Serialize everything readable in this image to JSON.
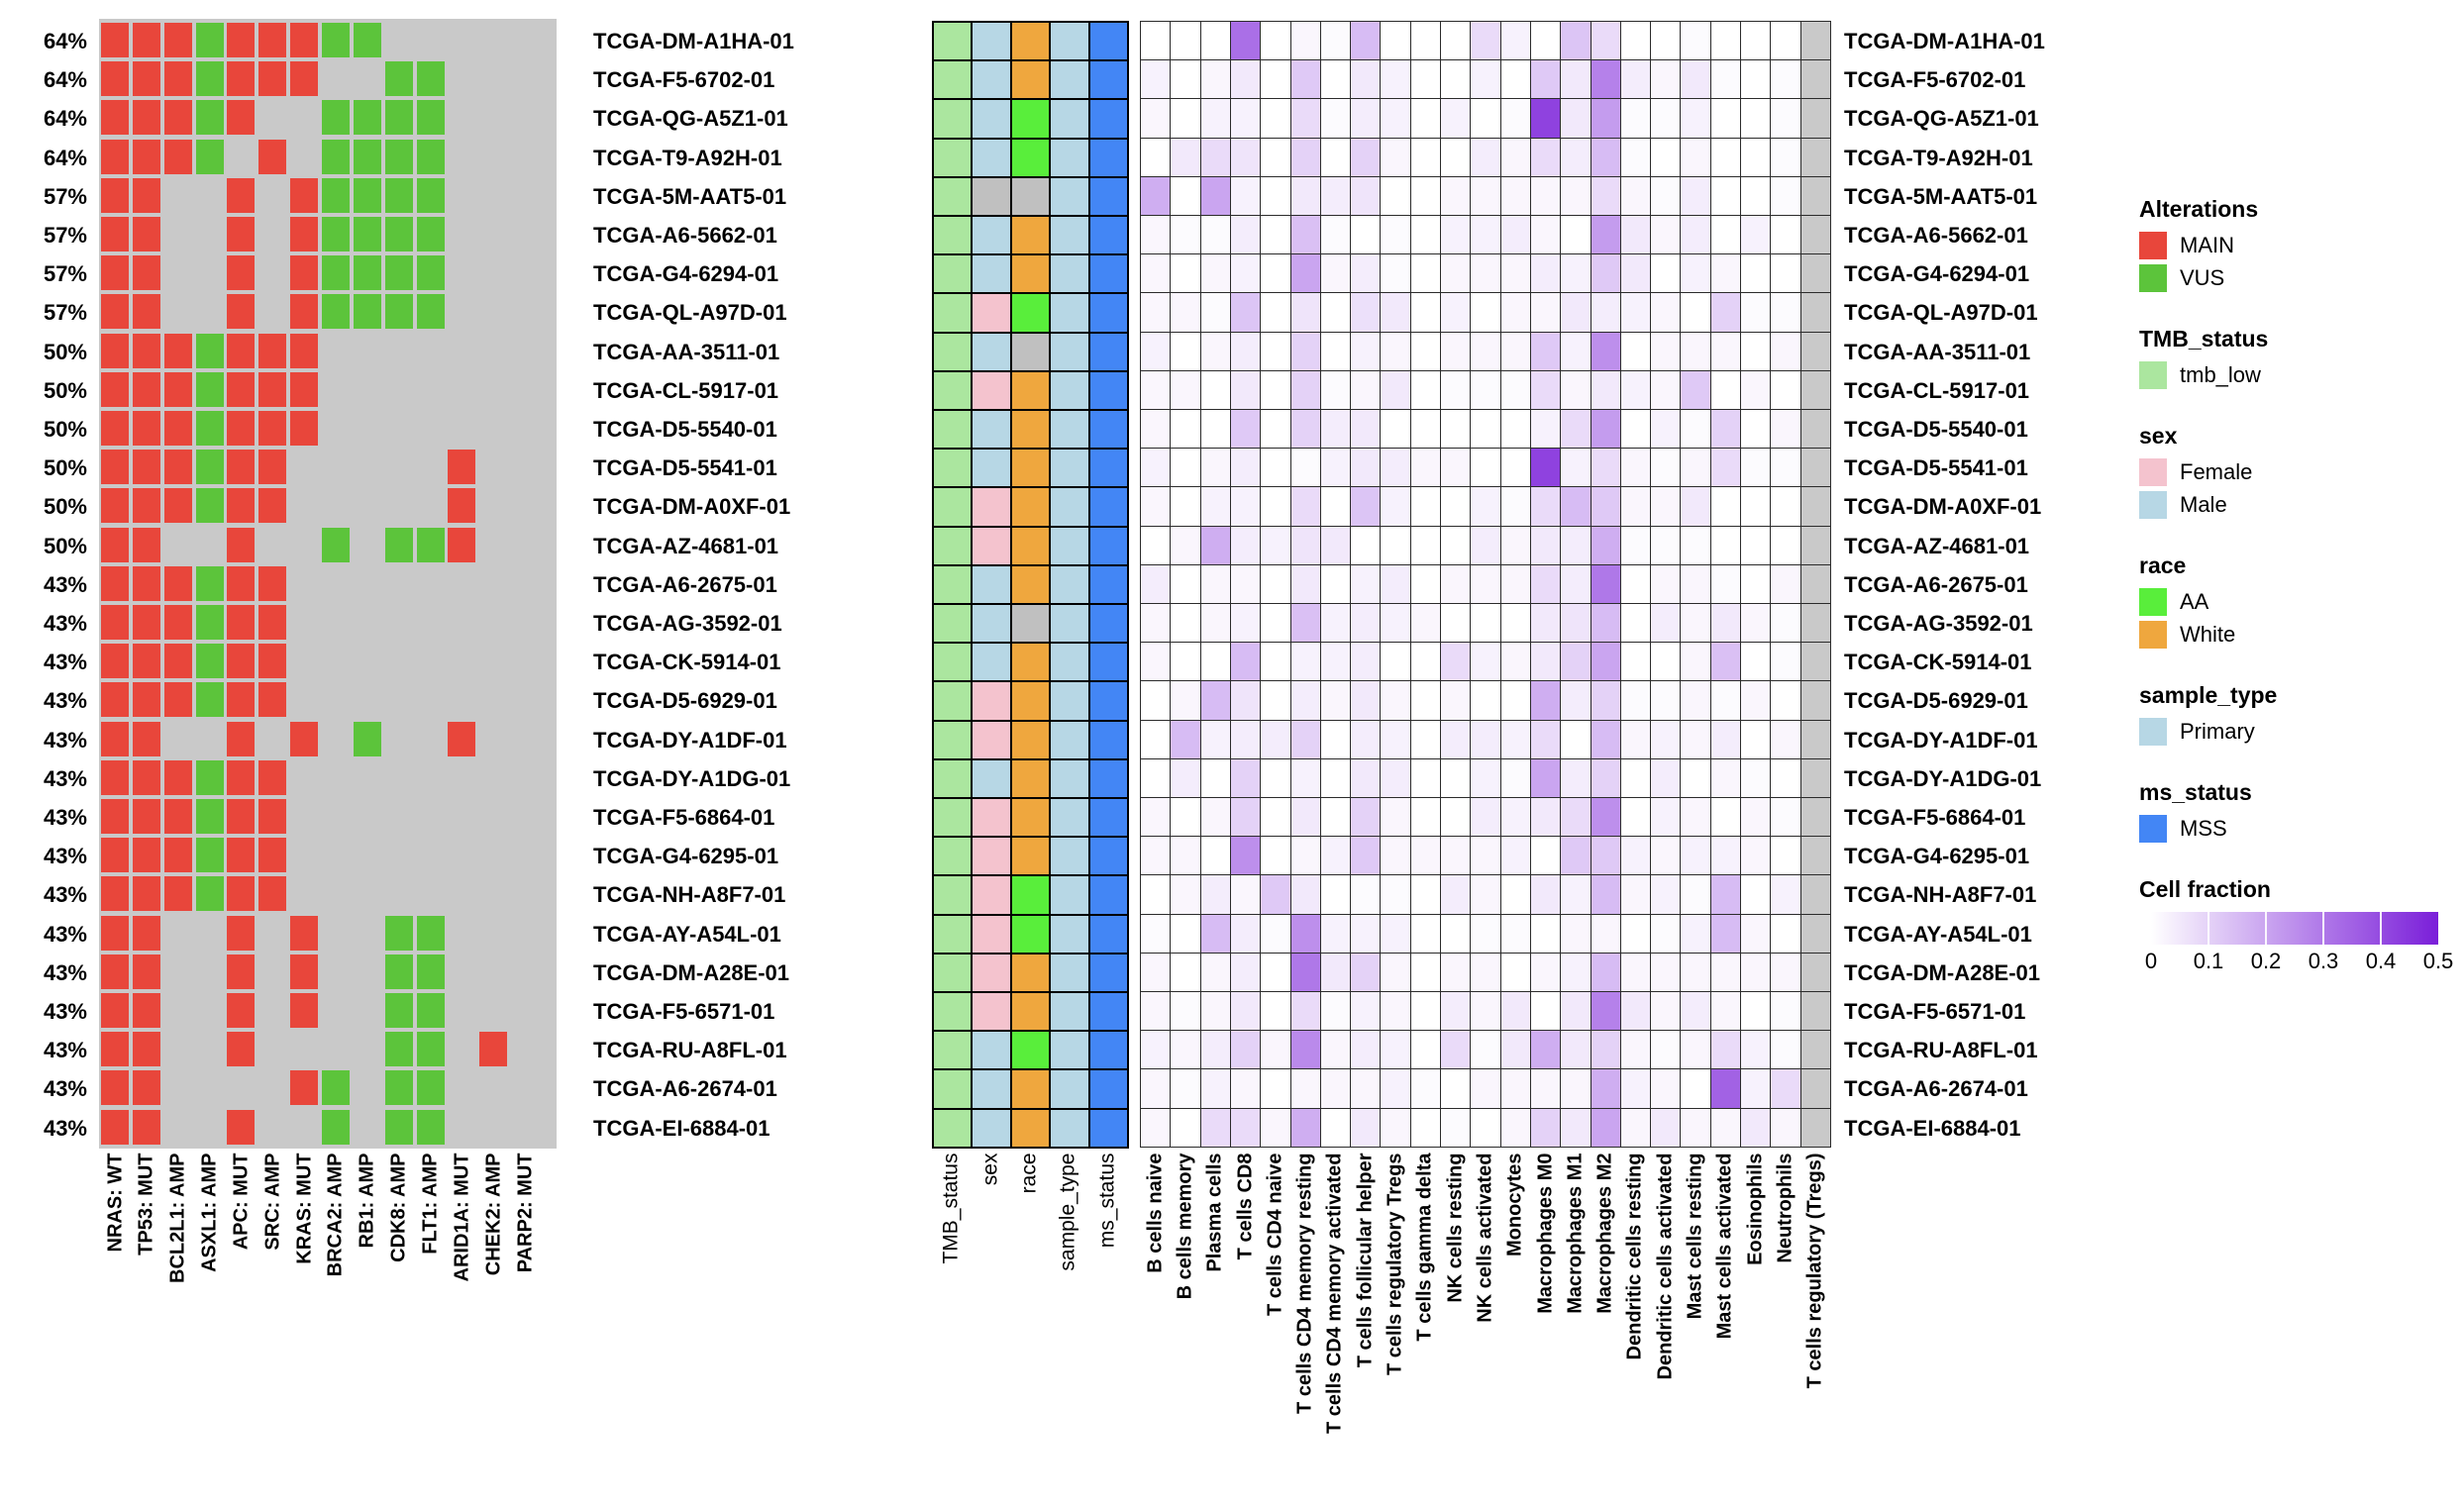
{
  "samples": [
    "TCGA-DM-A1HA-01",
    "TCGA-F5-6702-01",
    "TCGA-QG-A5Z1-01",
    "TCGA-T9-A92H-01",
    "TCGA-5M-AAT5-01",
    "TCGA-A6-5662-01",
    "TCGA-G4-6294-01",
    "TCGA-QL-A97D-01",
    "TCGA-AA-3511-01",
    "TCGA-CL-5917-01",
    "TCGA-D5-5540-01",
    "TCGA-D5-5541-01",
    "TCGA-DM-A0XF-01",
    "TCGA-AZ-4681-01",
    "TCGA-A6-2675-01",
    "TCGA-AG-3592-01",
    "TCGA-CK-5914-01",
    "TCGA-D5-6929-01",
    "TCGA-DY-A1DF-01",
    "TCGA-DY-A1DG-01",
    "TCGA-F5-6864-01",
    "TCGA-G4-6295-01",
    "TCGA-NH-A8F7-01",
    "TCGA-AY-A54L-01",
    "TCGA-DM-A28E-01",
    "TCGA-F5-6571-01",
    "TCGA-RU-A8FL-01",
    "TCGA-A6-2674-01",
    "TCGA-EI-6884-01"
  ],
  "chart_data": [
    {
      "type": "heatmap",
      "name": "oncoprint",
      "title": "Alterations oncoprint (MAIN=M, VUS=V, .=none)",
      "columns": [
        "NRAS: WT",
        "TP53: MUT",
        "BCL2L1: AMP",
        "ASXL1: AMP",
        "APC: MUT",
        "SRC: AMP",
        "KRAS: MUT",
        "BRCA2: AMP",
        "RB1: AMP",
        "CDK8: AMP",
        "FLT1: AMP",
        "ARID1A: MUT",
        "CHEK2: AMP",
        "PARP2: MUT"
      ],
      "row_pcts": [
        "64%",
        "64%",
        "64%",
        "64%",
        "57%",
        "57%",
        "57%",
        "57%",
        "50%",
        "50%",
        "50%",
        "50%",
        "50%",
        "50%",
        "43%",
        "43%",
        "43%",
        "43%",
        "43%",
        "43%",
        "43%",
        "43%",
        "43%",
        "43%",
        "43%",
        "43%",
        "43%",
        "43%",
        "43%"
      ],
      "values": [
        "MMMVMMMVV.....",
        "MMMVMMM..VV...",
        "MMMVM..VVVV...",
        "MMMV.M.VVVV...",
        "MM..M.MVVVV...",
        "MM..M.MVVVV...",
        "MM..M.MVVVV...",
        "MM..M.MVVVV...",
        "MMMVMMM.......",
        "MMMVMMM.......",
        "MMMVMMM.......",
        "MMMVMM.....M..",
        "MMMVMM.....M..",
        "MM..M..V.VVM..",
        "MMMVMM........",
        "MMMVMM........",
        "MMMVMM........",
        "MMMVMM........",
        "MM..M.M.V..M..",
        "MMMVMM........",
        "MMMVMM........",
        "MMMVMM........",
        "MMMVMM........",
        "MM..M.M..VV...",
        "MM..M.M..VV...",
        "MM..M.M..VV...",
        "MM..M....VV.M.",
        "MM....MV.VV...",
        "MM..M..V.VV..."
      ],
      "colors": {
        "M": "#E8463B",
        "V": "#5CC43B",
        "none": "#C9C9C9"
      }
    },
    {
      "type": "heatmap",
      "name": "annotations",
      "columns": [
        "TMB_status",
        "sex",
        "race",
        "sample_type",
        "ms_status"
      ],
      "colors": {
        "tmb_low": "#ABE69F",
        "Female": "#F4C3CE",
        "Male": "#B7D7E5",
        "AA": "#59EE3B",
        "White": "#EFA73E",
        "Primary": "#B7D7E5",
        "MSS": "#4386F5",
        "NA": "#C0C0C0"
      },
      "values": [
        [
          "tmb_low",
          "Male",
          "White",
          "Primary",
          "MSS"
        ],
        [
          "tmb_low",
          "Male",
          "White",
          "Primary",
          "MSS"
        ],
        [
          "tmb_low",
          "Male",
          "AA",
          "Primary",
          "MSS"
        ],
        [
          "tmb_low",
          "Male",
          "AA",
          "Primary",
          "MSS"
        ],
        [
          "tmb_low",
          "NA",
          "NA",
          "Primary",
          "MSS"
        ],
        [
          "tmb_low",
          "Male",
          "White",
          "Primary",
          "MSS"
        ],
        [
          "tmb_low",
          "Male",
          "White",
          "Primary",
          "MSS"
        ],
        [
          "tmb_low",
          "Female",
          "AA",
          "Primary",
          "MSS"
        ],
        [
          "tmb_low",
          "Male",
          "NA",
          "Primary",
          "MSS"
        ],
        [
          "tmb_low",
          "Female",
          "White",
          "Primary",
          "MSS"
        ],
        [
          "tmb_low",
          "Male",
          "White",
          "Primary",
          "MSS"
        ],
        [
          "tmb_low",
          "Male",
          "White",
          "Primary",
          "MSS"
        ],
        [
          "tmb_low",
          "Female",
          "White",
          "Primary",
          "MSS"
        ],
        [
          "tmb_low",
          "Female",
          "White",
          "Primary",
          "MSS"
        ],
        [
          "tmb_low",
          "Male",
          "White",
          "Primary",
          "MSS"
        ],
        [
          "tmb_low",
          "Male",
          "NA",
          "Primary",
          "MSS"
        ],
        [
          "tmb_low",
          "Male",
          "White",
          "Primary",
          "MSS"
        ],
        [
          "tmb_low",
          "Female",
          "White",
          "Primary",
          "MSS"
        ],
        [
          "tmb_low",
          "Female",
          "White",
          "Primary",
          "MSS"
        ],
        [
          "tmb_low",
          "Male",
          "White",
          "Primary",
          "MSS"
        ],
        [
          "tmb_low",
          "Female",
          "White",
          "Primary",
          "MSS"
        ],
        [
          "tmb_low",
          "Female",
          "White",
          "Primary",
          "MSS"
        ],
        [
          "tmb_low",
          "Female",
          "AA",
          "Primary",
          "MSS"
        ],
        [
          "tmb_low",
          "Female",
          "AA",
          "Primary",
          "MSS"
        ],
        [
          "tmb_low",
          "Female",
          "White",
          "Primary",
          "MSS"
        ],
        [
          "tmb_low",
          "Female",
          "White",
          "Primary",
          "MSS"
        ],
        [
          "tmb_low",
          "Male",
          "AA",
          "Primary",
          "MSS"
        ],
        [
          "tmb_low",
          "Male",
          "White",
          "Primary",
          "MSS"
        ],
        [
          "tmb_low",
          "Male",
          "White",
          "Primary",
          "MSS"
        ]
      ]
    },
    {
      "type": "heatmap",
      "name": "cell_fraction",
      "title": "Cell fraction",
      "columns": [
        "B cells naive",
        "B cells memory",
        "Plasma cells",
        "T cells CD8",
        "T cells CD4 naive",
        "T cells CD4 memory resting",
        "T cells CD4 memory activated",
        "T cells follicular helper",
        "T cells regulatory Tregs",
        "T cells gamma delta",
        "NK cells resting",
        "NK cells activated",
        "Monocytes",
        "Macrophages M0",
        "Macrophages M1",
        "Macrophages M2",
        "Dendritic cells resting",
        "Dendritic cells activated",
        "Mast cells resting",
        "Mast cells activated",
        "Eosinophils",
        "Neutrophils",
        "T cells regulatory (Tregs)"
      ],
      "scale": {
        "min": 0,
        "max": 0.5,
        "min_color": "#FFFFFF",
        "max_color": "#7A1ED9",
        "na_color": "#C9C9C9"
      },
      "values": [
        [
          0,
          0,
          0,
          0.32,
          0,
          0.02,
          0.01,
          0.15,
          0,
          0,
          0,
          0.08,
          0.03,
          0,
          0.13,
          0.08,
          0,
          0,
          0.01,
          0,
          0,
          0,
          null
        ],
        [
          0.03,
          0,
          0.02,
          0.05,
          0,
          0.12,
          0,
          0.05,
          0.03,
          0,
          0,
          0.03,
          0,
          0.12,
          0.05,
          0.28,
          0.04,
          0.02,
          0.05,
          0.01,
          0,
          0.01,
          null
        ],
        [
          0.02,
          0,
          0.03,
          0.03,
          0,
          0.08,
          0.01,
          0.04,
          0.03,
          0,
          0.03,
          0,
          0.01,
          0.42,
          0.05,
          0.22,
          0.01,
          0.01,
          0.03,
          0,
          0,
          0.01,
          null
        ],
        [
          0,
          0.05,
          0.08,
          0.06,
          0,
          0.1,
          0,
          0.1,
          0.02,
          0,
          0,
          0.04,
          0.02,
          0.08,
          0.04,
          0.15,
          0.01,
          0,
          0.02,
          0,
          0,
          0.01,
          null
        ],
        [
          0.18,
          0,
          0.2,
          0.03,
          0,
          0.05,
          0.04,
          0.06,
          0,
          0,
          0.02,
          0.02,
          0.02,
          0.02,
          0.02,
          0.08,
          0.02,
          0.01,
          0.04,
          0,
          0,
          0.01,
          null
        ],
        [
          0.02,
          0.01,
          0.01,
          0.04,
          0,
          0.14,
          0.01,
          0,
          0.01,
          0,
          0.03,
          0.03,
          0.04,
          0.02,
          0,
          0.22,
          0.05,
          0.02,
          0.04,
          0,
          0.03,
          0,
          null
        ],
        [
          0.02,
          0,
          0.02,
          0.03,
          0,
          0.2,
          0.02,
          0.04,
          0.01,
          0,
          0.02,
          0.02,
          0.02,
          0.04,
          0.03,
          0.12,
          0.05,
          0,
          0.03,
          0.02,
          0,
          0,
          null
        ],
        [
          0.02,
          0.02,
          0.01,
          0.13,
          0,
          0.06,
          0,
          0.07,
          0.05,
          0,
          0.03,
          0,
          0.02,
          0.02,
          0.05,
          0.04,
          0.03,
          0.02,
          0,
          0.1,
          0.01,
          0.01,
          null
        ],
        [
          0.03,
          0,
          0.02,
          0.04,
          0,
          0.1,
          0,
          0.03,
          0.02,
          0,
          0.02,
          0.02,
          0.02,
          0.12,
          0.03,
          0.25,
          0,
          0.02,
          0.02,
          0.02,
          0,
          0.02,
          null
        ],
        [
          0.02,
          0.02,
          0,
          0.05,
          0,
          0.1,
          0.01,
          0.02,
          0.05,
          0,
          0.01,
          0.01,
          0.01,
          0.08,
          0.02,
          0.05,
          0.03,
          0.02,
          0.12,
          0,
          0.02,
          0,
          null
        ],
        [
          0.02,
          0,
          0,
          0.12,
          0,
          0.1,
          0.04,
          0.05,
          0,
          0,
          0,
          0,
          0,
          0.03,
          0.08,
          0.22,
          0,
          0.03,
          0.01,
          0.1,
          0,
          0.02,
          null
        ],
        [
          0.03,
          0,
          0.02,
          0.04,
          0,
          0.01,
          0.03,
          0.05,
          0.04,
          0.02,
          0.02,
          0,
          0,
          0.42,
          0.03,
          0.08,
          0.02,
          0.01,
          0.02,
          0.08,
          0.01,
          0.01,
          null
        ],
        [
          0.02,
          0,
          0.03,
          0.03,
          0,
          0.08,
          0,
          0.13,
          0.03,
          0,
          0,
          0.03,
          0.01,
          0.08,
          0.15,
          0.12,
          0.02,
          0.02,
          0.05,
          0,
          0,
          0,
          null
        ],
        [
          0,
          0.02,
          0.18,
          0.04,
          0.03,
          0.06,
          0.05,
          0,
          0,
          0,
          0,
          0.04,
          0.02,
          0.05,
          0.04,
          0.18,
          0.01,
          0.01,
          0.01,
          0,
          0,
          0,
          null
        ],
        [
          0.04,
          0,
          0.02,
          0.02,
          0,
          0.05,
          0,
          0.03,
          0.04,
          0,
          0.02,
          0.02,
          0.02,
          0.08,
          0.04,
          0.3,
          0,
          0.02,
          0.02,
          0.01,
          0,
          0.02,
          null
        ],
        [
          0.02,
          0,
          0.02,
          0.03,
          0,
          0.14,
          0.03,
          0.04,
          0.03,
          0.02,
          0,
          0,
          0,
          0.05,
          0.06,
          0.15,
          0,
          0.04,
          0.02,
          0.05,
          0.02,
          0.01,
          null
        ],
        [
          0.02,
          0,
          0,
          0.15,
          0,
          0.03,
          0.03,
          0.04,
          0,
          0,
          0.08,
          0.03,
          0.02,
          0.05,
          0.1,
          0.2,
          0,
          0,
          0.02,
          0.14,
          0,
          0.01,
          null
        ],
        [
          0,
          0.02,
          0.15,
          0.06,
          0,
          0.04,
          0.02,
          0.05,
          0.02,
          0,
          0.02,
          0,
          0,
          0.18,
          0.04,
          0.1,
          0.01,
          0.01,
          0.02,
          0.01,
          0.02,
          0,
          null
        ],
        [
          0,
          0.15,
          0.03,
          0.04,
          0.04,
          0.1,
          0,
          0.04,
          0.03,
          0,
          0.04,
          0.04,
          0.03,
          0.08,
          0,
          0.15,
          0.02,
          0.03,
          0.02,
          0.04,
          0,
          0.02,
          null
        ],
        [
          0,
          0.04,
          0,
          0.1,
          0,
          0.03,
          0,
          0.05,
          0.04,
          0,
          0,
          0.03,
          0.01,
          0.2,
          0.04,
          0.1,
          0,
          0.04,
          0,
          0.02,
          0.01,
          0,
          null
        ],
        [
          0.02,
          0,
          0.02,
          0.1,
          0,
          0.05,
          0,
          0.1,
          0.02,
          0,
          0,
          0.04,
          0.03,
          0.05,
          0.08,
          0.25,
          0,
          0.03,
          0.02,
          0,
          0.02,
          0.01,
          null
        ],
        [
          0.02,
          0.02,
          0,
          0.25,
          0,
          0.02,
          0.03,
          0.12,
          0.02,
          0.02,
          0.02,
          0.02,
          0.03,
          0,
          0.12,
          0.12,
          0.03,
          0.02,
          0.03,
          0.03,
          0.02,
          0,
          null
        ],
        [
          0,
          0.02,
          0.04,
          0.02,
          0.12,
          0.05,
          0,
          0.01,
          0.01,
          0,
          0.04,
          0.02,
          0,
          0.05,
          0.03,
          0.15,
          0.02,
          0.03,
          0.01,
          0.15,
          0,
          0.03,
          null
        ],
        [
          0.01,
          0,
          0.15,
          0.04,
          0.01,
          0.25,
          0.03,
          0.03,
          0.03,
          0,
          0,
          0.01,
          0.01,
          0,
          0.02,
          0.02,
          0,
          0.01,
          0.03,
          0.15,
          0.02,
          0,
          null
        ],
        [
          0.02,
          0,
          0.02,
          0.04,
          0,
          0.3,
          0.05,
          0.1,
          0.02,
          0,
          0.02,
          0.02,
          0,
          0.02,
          0.03,
          0.15,
          0.02,
          0.02,
          0.02,
          0.02,
          0.02,
          0.02,
          null
        ],
        [
          0.02,
          0.01,
          0.02,
          0.05,
          0,
          0.08,
          0.01,
          0.03,
          0.02,
          0,
          0.04,
          0.02,
          0.05,
          0,
          0.05,
          0.28,
          0.05,
          0.02,
          0.04,
          0.02,
          0,
          0.01,
          null
        ],
        [
          0.03,
          0.02,
          0.04,
          0.1,
          0.02,
          0.26,
          0.02,
          0.04,
          0.03,
          0,
          0.08,
          0.01,
          0.05,
          0.18,
          0.05,
          0.1,
          0.02,
          0.01,
          0.02,
          0.08,
          0.03,
          0.01,
          null
        ],
        [
          0.02,
          0.01,
          0.03,
          0.02,
          0,
          0.02,
          0.02,
          0.02,
          0.03,
          0.01,
          0,
          0.02,
          0.02,
          0.02,
          0.02,
          0.18,
          0.03,
          0.02,
          0,
          0.35,
          0.03,
          0.08,
          null
        ],
        [
          0.02,
          0,
          0.08,
          0.08,
          0.02,
          0.18,
          0,
          0.05,
          0.02,
          0,
          0.01,
          0,
          0.02,
          0.1,
          0.05,
          0.2,
          0.02,
          0.05,
          0.02,
          0.02,
          0.05,
          0.02,
          null
        ]
      ]
    }
  ],
  "legend": {
    "sections": [
      {
        "title": "Alterations",
        "items": [
          {
            "label": "MAIN",
            "color": "#E8463B"
          },
          {
            "label": "VUS",
            "color": "#5CC43B"
          }
        ]
      },
      {
        "title": "TMB_status",
        "items": [
          {
            "label": "tmb_low",
            "color": "#ABE69F"
          }
        ]
      },
      {
        "title": "sex",
        "items": [
          {
            "label": "Female",
            "color": "#F4C3CE"
          },
          {
            "label": "Male",
            "color": "#B7D7E5"
          }
        ]
      },
      {
        "title": "race",
        "items": [
          {
            "label": "AA",
            "color": "#59EE3B"
          },
          {
            "label": "White",
            "color": "#EFA73E"
          }
        ]
      },
      {
        "title": "sample_type",
        "items": [
          {
            "label": "Primary",
            "color": "#B7D7E5"
          }
        ]
      },
      {
        "title": "ms_status",
        "items": [
          {
            "label": "MSS",
            "color": "#4386F5"
          }
        ]
      }
    ],
    "cell_fraction": {
      "title": "Cell fraction",
      "ticks": [
        "0",
        "0.1",
        "0.2",
        "0.3",
        "0.4",
        "0.5"
      ],
      "min_color": "#FFFFFF",
      "max_color": "#7A1ED9"
    }
  }
}
